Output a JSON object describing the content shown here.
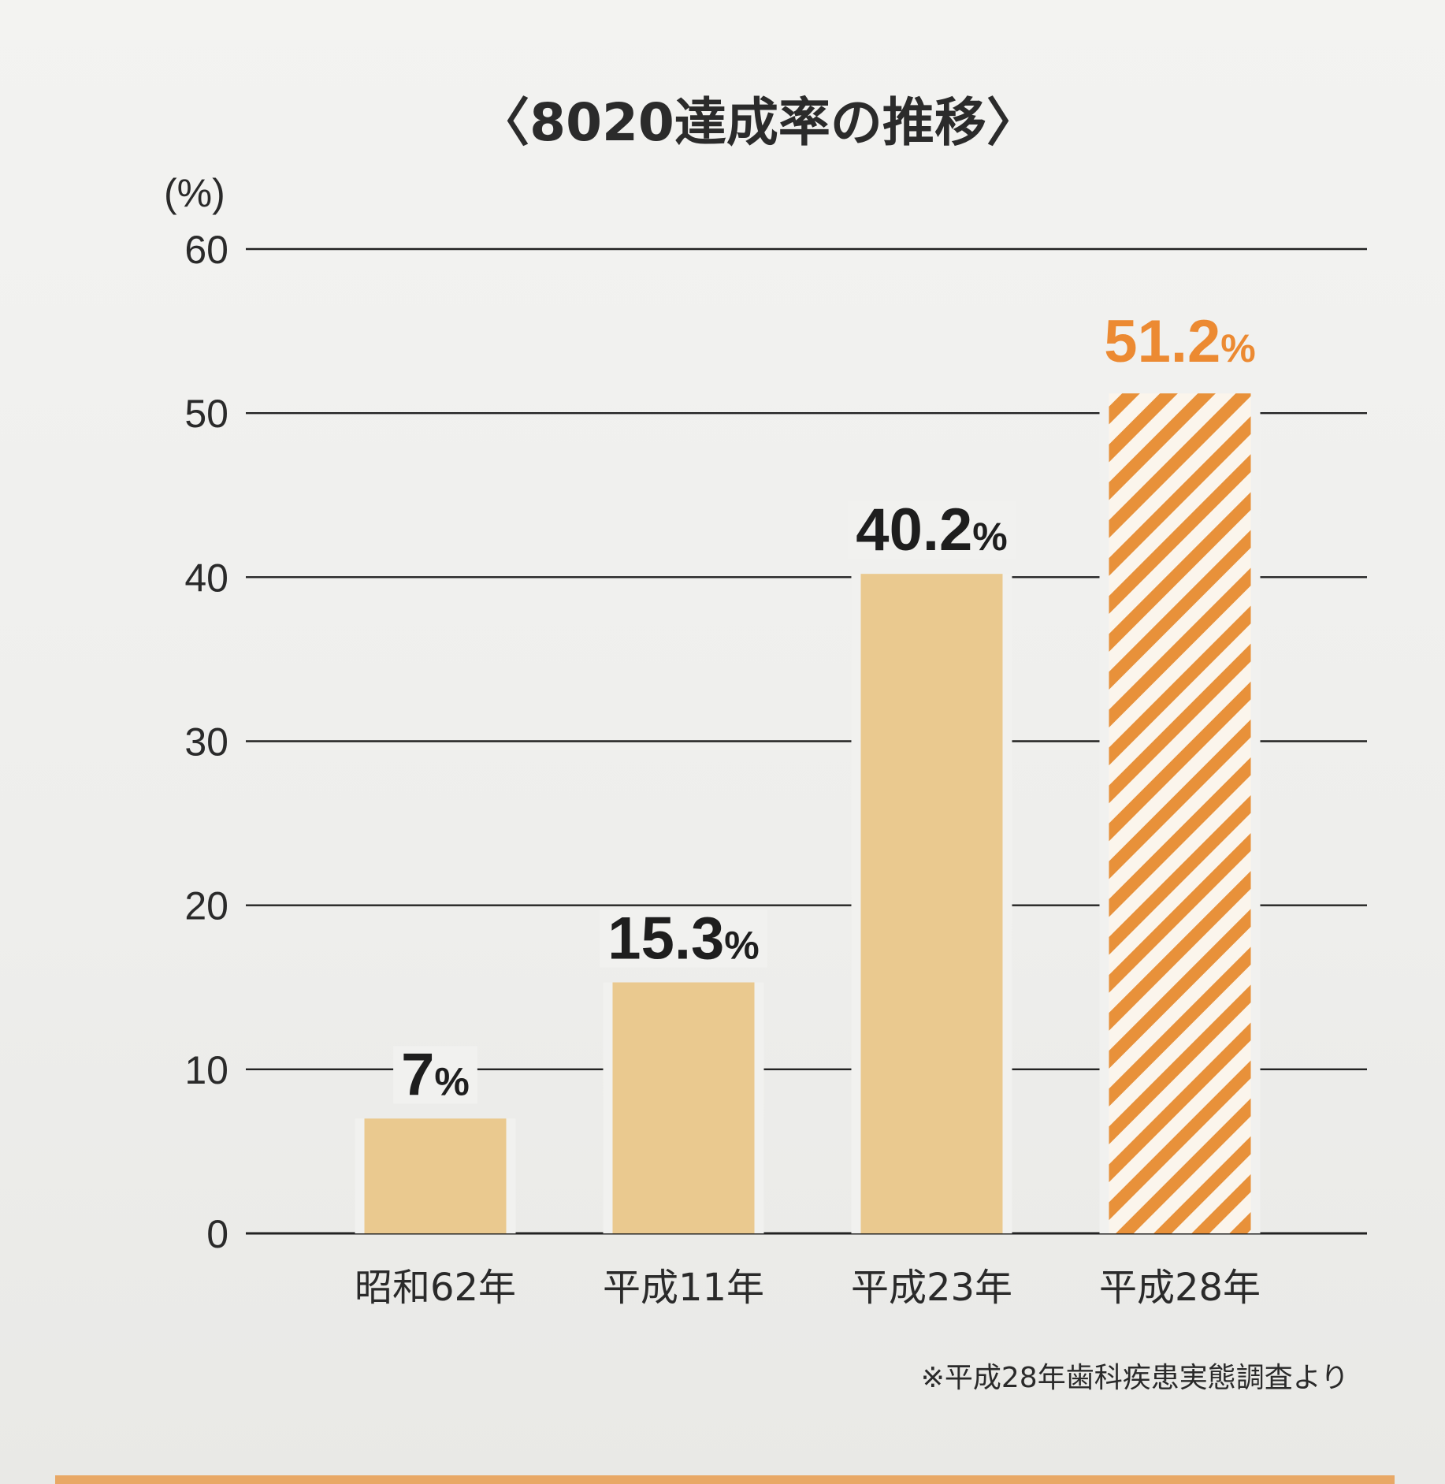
{
  "chart_data": {
    "type": "bar",
    "title": "〈8020達成率の推移〉",
    "ylabel": "(%)",
    "xlabel": "",
    "ylim": [
      0,
      60
    ],
    "yticks": [
      "0",
      "10",
      "20",
      "30",
      "40",
      "50",
      "60"
    ],
    "categories": [
      "昭和62年",
      "平成11年",
      "平成23年",
      "平成28年"
    ],
    "values": [
      7,
      15.3,
      40.2,
      51.2
    ],
    "data_labels": [
      "7",
      "15.3",
      "40.2",
      "51.2"
    ],
    "data_label_unit": "%",
    "highlighted_category": "平成28年",
    "grid": true,
    "legend": "none",
    "note": "※平成28年歯科疾患実態調査より",
    "colors": {
      "bar": "#eac98f",
      "highlight": "#e8913a",
      "label": "#1e1e1e",
      "highlight_label": "#ec8a32",
      "grid": "#222222"
    }
  }
}
